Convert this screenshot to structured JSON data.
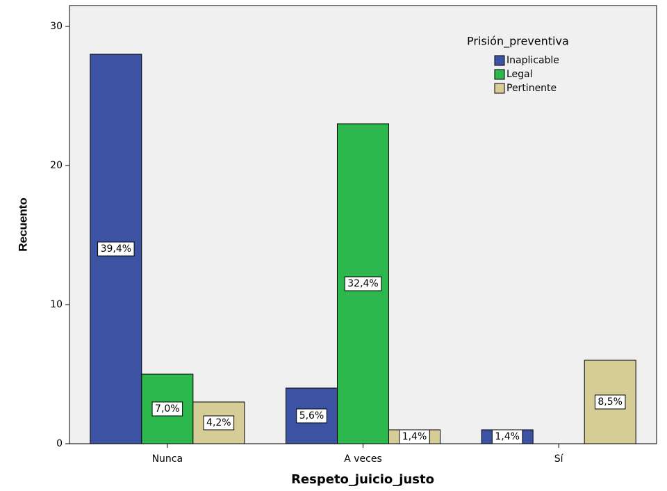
{
  "chart_data": {
    "type": "bar",
    "x_label": "Respeto_juicio_justo",
    "y_label": "Recuento",
    "legend_title": "Prisión_preventiva",
    "legend_position": "top-right",
    "categories": [
      "Nunca",
      "A veces",
      "Sí"
    ],
    "series": [
      {
        "name": "Inaplicable",
        "color": "#3c53a4",
        "values": [
          28,
          4,
          1
        ],
        "percent_labels": [
          "39,4%",
          "5,6%",
          "1,4%"
        ]
      },
      {
        "name": "Legal",
        "color": "#2db84d",
        "values": [
          5,
          23,
          0
        ],
        "percent_labels": [
          "7,0%",
          "32,4%",
          null
        ]
      },
      {
        "name": "Pertinente",
        "color": "#d6cd96",
        "values": [
          3,
          1,
          6
        ],
        "percent_labels": [
          "4,2%",
          "1,4%",
          "8,5%"
        ]
      }
    ],
    "ylim": [
      0,
      31.5
    ],
    "yticks": [
      0,
      10,
      20,
      30
    ],
    "grid": false
  }
}
